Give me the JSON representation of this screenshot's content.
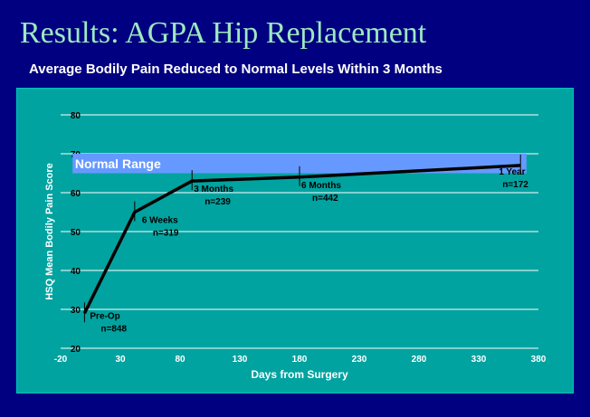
{
  "slide": {
    "title": "Results:  AGPA Hip Replacement",
    "subtitle": "Average Bodily Pain Reduced to Normal Levels Within 3 Months"
  },
  "colors": {
    "background": "#000080",
    "plot_area": "#00a3a0",
    "normal_band": "#6699ff",
    "line": "#000000",
    "title_text": "#9de8c0"
  },
  "chart_data": {
    "type": "line",
    "title": "Average Bodily Pain Reduced to Normal Levels Within 3 Months",
    "xlabel": "Days from Surgery",
    "ylabel": "HSQ Mean Bodily Pain Score",
    "xlim": [
      -20,
      380
    ],
    "ylim": [
      20,
      80
    ],
    "x_ticks": [
      "-20",
      "30",
      "80",
      "130",
      "180",
      "230",
      "280",
      "330",
      "380"
    ],
    "y_ticks": [
      "20",
      "30",
      "40",
      "50",
      "60",
      "70",
      "80"
    ],
    "grid": true,
    "band": {
      "label": "Normal Range",
      "y0": 65,
      "y1": 70
    },
    "series": [
      {
        "x": [
          0,
          42,
          90,
          180,
          365
        ],
        "y": [
          29,
          55,
          63,
          64,
          67
        ]
      }
    ],
    "annotations": [
      {
        "line1": "Pre-Op",
        "line2": "n=848"
      },
      {
        "line1": "6 Weeks",
        "line2": "n=319"
      },
      {
        "line1": "3 Months",
        "line2": "n=239"
      },
      {
        "line1": "6 Months",
        "line2": "n=442"
      },
      {
        "line1": "1 Year",
        "line2": "n=172"
      }
    ]
  }
}
